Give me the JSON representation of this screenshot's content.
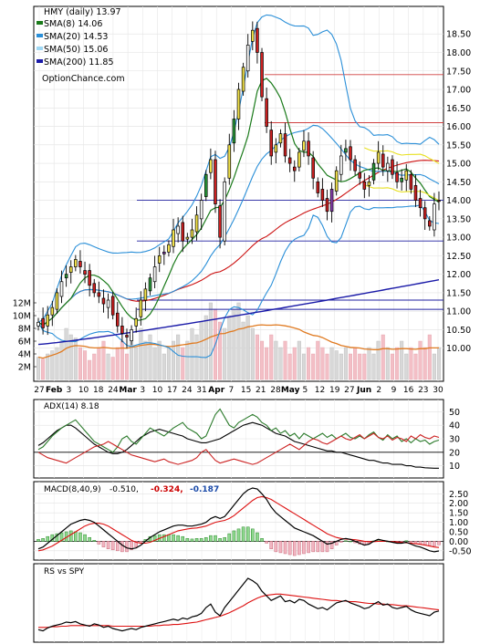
{
  "header": {
    "ticker_line": "HMY (daily) 13.97",
    "watermark": "OptionChance.com"
  },
  "legend": [
    {
      "label": "SMA(8) 14.06",
      "color": "#1a7a1a"
    },
    {
      "label": "SMA(20) 14.53",
      "color": "#2a8fd8"
    },
    {
      "label": "SMA(50) 15.06",
      "color": "#9fd8f4"
    },
    {
      "label": "SMA(200) 11.85",
      "color": "#1a1aa8"
    }
  ],
  "chart_data": [
    {
      "type": "candlestick",
      "name": "price",
      "price_axis": [
        "18.50",
        "18.00",
        "17.50",
        "17.00",
        "16.50",
        "16.00",
        "15.50",
        "15.00",
        "14.50",
        "14.00",
        "13.50",
        "13.00",
        "12.50",
        "12.00",
        "11.50",
        "11.00",
        "10.50",
        "10.00"
      ],
      "ylim": [
        9.4,
        18.95
      ],
      "volume_axis": [
        "12M",
        "10M",
        "8M",
        "6M",
        "4M",
        "2M"
      ],
      "volume_max": 13,
      "month_labels": [
        "Feb",
        "Mar",
        "Apr",
        "May",
        "Jun"
      ],
      "day_labels": [
        "27",
        "3",
        "10",
        "18",
        "24",
        "3",
        "10",
        "17",
        "24",
        "31",
        "7",
        "15",
        "21",
        "28",
        "5",
        "12",
        "19",
        "27",
        "2",
        "9",
        "16",
        "23",
        "30"
      ],
      "horizontal_levels": [
        {
          "value": 17.4,
          "color": "#d04040"
        },
        {
          "value": 16.1,
          "color": "#d04040"
        },
        {
          "value": 14.0,
          "color": "#2020a0"
        },
        {
          "value": 12.9,
          "color": "#2020a0"
        },
        {
          "value": 11.3,
          "color": "#2020a0"
        },
        {
          "value": 11.05,
          "color": "#2020a0"
        }
      ],
      "close": [
        10.7,
        10.55,
        10.9,
        11.1,
        11.5,
        11.8,
        12.0,
        12.2,
        12.4,
        12.2,
        12.0,
        11.7,
        11.5,
        11.4,
        11.2,
        11.3,
        10.9,
        10.6,
        10.4,
        10.3,
        10.5,
        10.8,
        11.3,
        11.6,
        11.9,
        12.2,
        12.5,
        12.6,
        12.8,
        13.2,
        13.3,
        12.9,
        13.0,
        13.2,
        13.6,
        14.0,
        14.7,
        15.1,
        13.9,
        13.0,
        14.5,
        15.5,
        16.2,
        17.0,
        17.6,
        18.2,
        18.6,
        18.0,
        16.8,
        16.0,
        15.2,
        15.5,
        15.8,
        15.2,
        15.0,
        14.8,
        15.3,
        15.6,
        15.2,
        14.6,
        14.2,
        14.0,
        13.7,
        14.3,
        14.8,
        15.2,
        15.4,
        15.1,
        14.8,
        14.6,
        14.3,
        14.5,
        15.0,
        15.3,
        14.9,
        15.0,
        14.7,
        14.5,
        14.6,
        14.8,
        14.3,
        14.0,
        13.8,
        13.5,
        13.3,
        13.9,
        13.97
      ],
      "volume_millions": [
        3.5,
        3.2,
        4,
        4.5,
        5,
        6,
        8,
        7,
        6.5,
        5,
        4.5,
        3,
        4,
        5,
        6,
        4,
        3.5,
        5,
        6,
        4,
        7,
        5,
        8,
        6,
        7,
        5,
        6,
        4,
        5,
        6,
        7,
        5,
        6,
        8,
        7,
        9,
        10,
        12,
        11,
        9,
        8,
        10,
        11,
        12,
        9,
        10,
        8,
        7,
        6,
        5,
        7,
        6,
        5,
        6,
        4,
        5,
        6,
        4,
        5,
        4,
        6,
        5,
        4,
        5,
        4.5,
        4,
        5,
        4,
        5,
        4,
        4,
        5,
        4,
        6,
        7,
        5,
        4,
        5,
        6,
        4,
        5,
        4,
        6,
        5,
        7,
        4,
        5
      ],
      "sma8_last": 14.06,
      "sma20_last": 14.53,
      "sma50_last": 15.06,
      "sma200_last": 11.85
    },
    {
      "type": "line",
      "name": "adx",
      "label": "ADX(14) 8.18",
      "axis": [
        "50",
        "40",
        "30",
        "20",
        "10"
      ],
      "ylim": [
        5,
        55
      ],
      "series": [
        {
          "color": "#000000",
          "values": [
            25,
            27,
            30,
            33,
            36,
            38,
            40,
            40,
            38,
            35,
            32,
            29,
            26,
            24,
            22,
            20,
            19,
            19,
            20,
            22,
            25,
            28,
            31,
            33,
            35,
            36,
            37,
            36,
            35,
            34,
            33,
            32,
            30,
            29,
            28,
            27,
            27,
            28,
            29,
            30,
            32,
            34,
            36,
            38,
            40,
            41,
            42,
            41,
            40,
            38,
            36,
            34,
            33,
            32,
            30,
            28,
            27,
            26,
            25,
            24,
            23,
            22,
            21,
            21,
            20,
            20,
            19,
            18,
            17,
            16,
            15,
            14,
            14,
            13,
            12,
            12,
            11,
            11,
            11,
            10,
            10,
            9,
            9,
            8.5,
            8.3,
            8.2,
            8.18
          ]
        },
        {
          "color": "#2a7a2a",
          "values": [
            22,
            24,
            28,
            32,
            35,
            38,
            40,
            42,
            44,
            40,
            36,
            32,
            28,
            26,
            24,
            22,
            20,
            24,
            30,
            32,
            28,
            26,
            30,
            34,
            38,
            36,
            34,
            32,
            35,
            38,
            40,
            42,
            38,
            36,
            34,
            30,
            32,
            40,
            48,
            52,
            46,
            40,
            38,
            42,
            44,
            46,
            48,
            46,
            42,
            40,
            36,
            38,
            34,
            36,
            32,
            34,
            30,
            34,
            32,
            30,
            32,
            34,
            31,
            33,
            30,
            32,
            34,
            31,
            30,
            32,
            30,
            33,
            35,
            31,
            29,
            33,
            30,
            32,
            28,
            30,
            27,
            30,
            28,
            29,
            26,
            28,
            29
          ]
        },
        {
          "color": "#cc2222",
          "values": [
            20,
            18,
            16,
            15,
            14,
            13,
            12,
            14,
            16,
            18,
            20,
            22,
            24,
            25,
            26,
            28,
            26,
            24,
            22,
            20,
            18,
            17,
            16,
            15,
            14,
            13,
            14,
            15,
            13,
            12,
            11,
            12,
            13,
            14,
            16,
            20,
            22,
            18,
            14,
            12,
            13,
            14,
            15,
            14,
            13,
            12,
            11,
            12,
            14,
            16,
            18,
            20,
            22,
            24,
            26,
            24,
            22,
            25,
            28,
            30,
            29,
            27,
            26,
            28,
            30,
            32,
            30,
            29,
            31,
            33,
            30,
            32,
            34,
            31,
            30,
            32,
            29,
            31,
            30,
            28,
            32,
            30,
            33,
            31,
            30,
            32,
            31
          ]
        }
      ]
    },
    {
      "type": "line",
      "name": "macd",
      "label": "MACD(8,40,9)",
      "macd_value": "-0.510,",
      "signal_value": "-0.324,",
      "histogram_value": "-0.187",
      "axis": [
        "2.50",
        "2.00",
        "1.50",
        "1.00",
        "0.50",
        "0.00",
        "-0.50"
      ],
      "ylim": [
        -0.7,
        2.85
      ],
      "macd": [
        -0.4,
        -0.3,
        -0.1,
        0.1,
        0.3,
        0.5,
        0.7,
        0.9,
        1.0,
        1.1,
        1.15,
        1.1,
        1.0,
        0.8,
        0.6,
        0.4,
        0.2,
        0.0,
        -0.2,
        -0.35,
        -0.4,
        -0.35,
        -0.2,
        0.0,
        0.2,
        0.35,
        0.5,
        0.6,
        0.7,
        0.8,
        0.85,
        0.85,
        0.8,
        0.8,
        0.85,
        0.9,
        1.0,
        1.2,
        1.3,
        1.2,
        1.3,
        1.6,
        1.9,
        2.2,
        2.5,
        2.7,
        2.8,
        2.75,
        2.5,
        2.2,
        1.8,
        1.5,
        1.3,
        1.1,
        0.9,
        0.7,
        0.6,
        0.5,
        0.4,
        0.3,
        0.15,
        0.0,
        -0.15,
        -0.1,
        0.0,
        0.1,
        0.15,
        0.1,
        0.0,
        -0.1,
        -0.2,
        -0.15,
        0.0,
        0.1,
        0.05,
        0.0,
        -0.05,
        -0.1,
        -0.1,
        -0.05,
        -0.15,
        -0.25,
        -0.3,
        -0.4,
        -0.5,
        -0.55,
        -0.51
      ],
      "signal": [
        -0.5,
        -0.45,
        -0.35,
        -0.25,
        -0.1,
        0.05,
        0.2,
        0.35,
        0.5,
        0.65,
        0.8,
        0.9,
        0.95,
        0.95,
        0.9,
        0.8,
        0.65,
        0.5,
        0.35,
        0.2,
        0.05,
        -0.05,
        -0.1,
        -0.1,
        -0.05,
        0.05,
        0.15,
        0.25,
        0.35,
        0.45,
        0.55,
        0.6,
        0.65,
        0.68,
        0.7,
        0.75,
        0.8,
        0.9,
        1.0,
        1.05,
        1.1,
        1.2,
        1.35,
        1.55,
        1.75,
        1.95,
        2.15,
        2.3,
        2.35,
        2.3,
        2.2,
        2.05,
        1.9,
        1.75,
        1.6,
        1.45,
        1.3,
        1.15,
        1.0,
        0.85,
        0.7,
        0.55,
        0.4,
        0.3,
        0.2,
        0.15,
        0.12,
        0.1,
        0.08,
        0.05,
        0.0,
        -0.02,
        -0.02,
        0.0,
        0.0,
        0.0,
        -0.02,
        -0.04,
        -0.06,
        -0.08,
        -0.1,
        -0.13,
        -0.16,
        -0.2,
        -0.25,
        -0.3,
        -0.324
      ]
    },
    {
      "type": "line",
      "name": "relative_strength",
      "label": "RS vs SPY",
      "ylim": [
        0,
        1
      ],
      "rs": [
        0.12,
        0.1,
        0.15,
        0.18,
        0.2,
        0.22,
        0.25,
        0.24,
        0.26,
        0.22,
        0.2,
        0.18,
        0.22,
        0.2,
        0.16,
        0.18,
        0.14,
        0.12,
        0.1,
        0.12,
        0.14,
        0.12,
        0.16,
        0.18,
        0.2,
        0.22,
        0.24,
        0.26,
        0.28,
        0.3,
        0.28,
        0.32,
        0.3,
        0.34,
        0.36,
        0.4,
        0.5,
        0.56,
        0.42,
        0.36,
        0.5,
        0.6,
        0.7,
        0.8,
        0.9,
        1.0,
        0.96,
        0.9,
        0.78,
        0.7,
        0.62,
        0.66,
        0.7,
        0.6,
        0.62,
        0.58,
        0.64,
        0.62,
        0.56,
        0.52,
        0.48,
        0.5,
        0.46,
        0.52,
        0.58,
        0.6,
        0.62,
        0.58,
        0.55,
        0.52,
        0.48,
        0.5,
        0.56,
        0.6,
        0.54,
        0.56,
        0.5,
        0.48,
        0.5,
        0.52,
        0.46,
        0.42,
        0.4,
        0.38,
        0.36,
        0.42,
        0.44
      ],
      "rs_sma": [
        0.16,
        0.16,
        0.16,
        0.17,
        0.17,
        0.18,
        0.18,
        0.19,
        0.19,
        0.19,
        0.19,
        0.19,
        0.19,
        0.19,
        0.19,
        0.19,
        0.18,
        0.18,
        0.18,
        0.18,
        0.18,
        0.18,
        0.18,
        0.18,
        0.18,
        0.19,
        0.19,
        0.2,
        0.2,
        0.21,
        0.21,
        0.22,
        0.23,
        0.24,
        0.25,
        0.27,
        0.29,
        0.31,
        0.33,
        0.35,
        0.38,
        0.41,
        0.45,
        0.49,
        0.53,
        0.58,
        0.62,
        0.66,
        0.69,
        0.71,
        0.72,
        0.73,
        0.73,
        0.72,
        0.71,
        0.7,
        0.69,
        0.68,
        0.67,
        0.66,
        0.65,
        0.64,
        0.63,
        0.62,
        0.62,
        0.61,
        0.61,
        0.6,
        0.6,
        0.59,
        0.58,
        0.57,
        0.57,
        0.56,
        0.56,
        0.55,
        0.55,
        0.54,
        0.53,
        0.53,
        0.52,
        0.51,
        0.5,
        0.49,
        0.48,
        0.47,
        0.46
      ]
    }
  ]
}
